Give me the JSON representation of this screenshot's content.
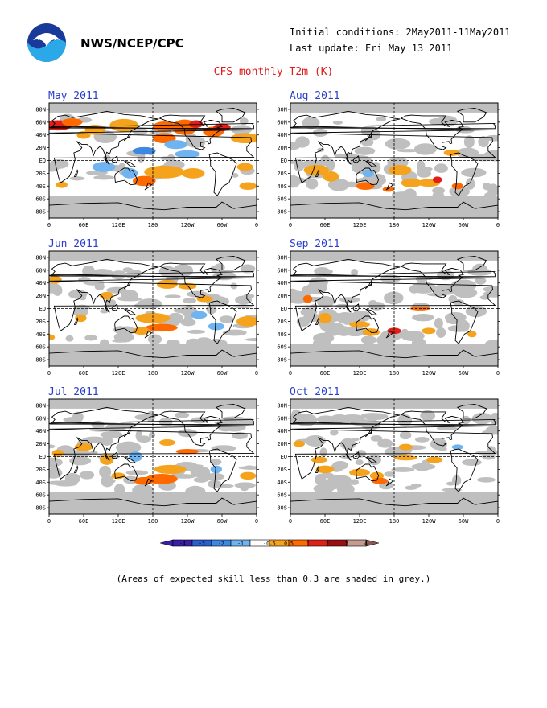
{
  "header": {
    "agency": "NWS/NCEP/CPC",
    "initial_conditions": "Initial conditions: 2May2011-11May2011",
    "last_update": "Last update: Fri May 13 2011",
    "title": "CFS monthly T2m (K)",
    "logo_text": "NOAA"
  },
  "axes": {
    "lat_labels": [
      "80N",
      "60N",
      "40N",
      "20N",
      "EQ",
      "20S",
      "40S",
      "60S",
      "80S"
    ],
    "lon_labels": [
      "0",
      "60E",
      "120E",
      "180",
      "120W",
      "60W",
      "0"
    ]
  },
  "maps": [
    {
      "month": "May 2011"
    },
    {
      "month": "Aug 2011"
    },
    {
      "month": "Jun 2011"
    },
    {
      "month": "Sep 2011"
    },
    {
      "month": "Jul 2011"
    },
    {
      "month": "Oct 2011"
    }
  ],
  "colorbar": {
    "labels": [
      "-4",
      "-3",
      "-2",
      "-1",
      "-0.5",
      "0.5",
      "1",
      "2",
      "3",
      "4"
    ],
    "colors": [
      "#3a1fa8",
      "#2a5fd0",
      "#3d88e0",
      "#6fb4f0",
      "#ffffff",
      "#f5a31c",
      "#ff6a00",
      "#e02018",
      "#9a1010",
      "#c79a8e"
    ],
    "end_low_color": "#3a1fa8",
    "end_high_color": "#8a5a4e"
  },
  "note": "(Areas of expected skill less than 0.3 are shaded in grey.)",
  "colors": {
    "grey_skill": "#bfbfbf",
    "title_red": "#dd1c1c",
    "month_blue": "#2b3fcf"
  }
}
